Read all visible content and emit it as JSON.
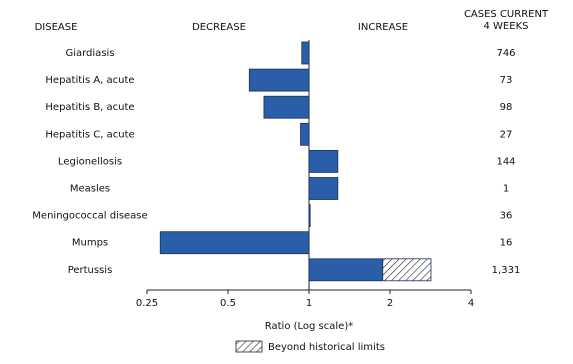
{
  "chart_data": {
    "type": "bar",
    "orientation": "horizontal",
    "log_scale": true,
    "headers": {
      "disease": "DISEASE",
      "decrease": "DECREASE",
      "increase": "INCREASE",
      "cases": [
        "CASES CURRENT",
        "4 WEEKS"
      ]
    },
    "categories": [
      "Giardiasis",
      "Hepatitis A, acute",
      "Hepatitis B, acute",
      "Hepatitis C, acute",
      "Legionellosis",
      "Measles",
      "Meningococcal disease",
      "Mumps",
      "Pertussis"
    ],
    "series": [
      {
        "color": "#2a5ea8",
        "values": [
          0.94,
          0.6,
          0.68,
          0.93,
          1.28,
          1.28,
          1.01,
          0.28,
          2.84
        ],
        "limits": [
          null,
          null,
          null,
          null,
          null,
          null,
          null,
          null,
          1.88
        ]
      }
    ],
    "cases": [
      "746",
      "73",
      "98",
      "27",
      "144",
      "1",
      "36",
      "16",
      "1,331"
    ],
    "xlim": [
      0.25,
      4
    ],
    "xticks": [
      0.25,
      0.5,
      1,
      2,
      4
    ],
    "xlabel": "Ratio (Log scale)*",
    "legend": {
      "label": "Beyond historical limits"
    }
  }
}
